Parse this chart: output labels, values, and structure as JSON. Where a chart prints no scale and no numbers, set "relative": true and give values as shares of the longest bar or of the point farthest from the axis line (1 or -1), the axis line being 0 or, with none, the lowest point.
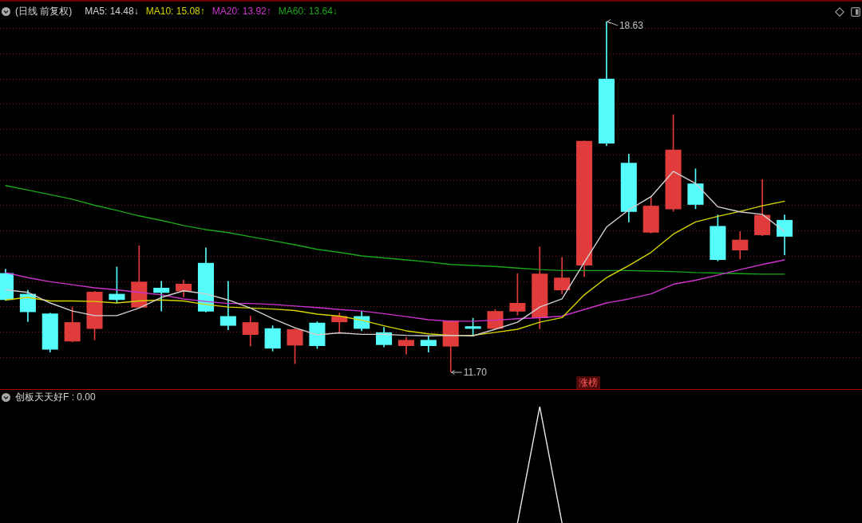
{
  "chart_data": [
    {
      "type": "candlestick",
      "title": "(日线 前复权)",
      "categories": [
        null,
        null,
        null,
        null,
        null,
        null,
        null,
        null,
        null,
        null,
        null,
        null,
        null,
        null,
        null,
        null,
        null,
        null,
        null,
        null,
        null,
        null,
        null,
        null,
        null,
        null,
        null,
        null,
        null,
        null,
        null,
        null,
        null,
        null,
        null,
        null
      ],
      "ohlc": [
        [
          13.66,
          13.74,
          13.12,
          13.13
        ],
        [
          13.25,
          13.32,
          12.7,
          12.89
        ],
        [
          12.86,
          12.87,
          12.1,
          12.15
        ],
        [
          12.31,
          12.99,
          12.3,
          12.69
        ],
        [
          12.56,
          13.3,
          12.34,
          13.29
        ],
        [
          13.25,
          13.78,
          13.07,
          13.13
        ],
        [
          12.98,
          14.2,
          12.97,
          13.49
        ],
        [
          13.37,
          13.5,
          12.91,
          13.27
        ],
        [
          13.3,
          13.52,
          13.19,
          13.45
        ],
        [
          13.86,
          14.16,
          12.89,
          12.9
        ],
        [
          12.81,
          13.5,
          12.54,
          12.62
        ],
        [
          12.44,
          12.81,
          12.22,
          12.69
        ],
        [
          12.57,
          12.62,
          12.12,
          12.17
        ],
        [
          12.23,
          12.57,
          11.87,
          12.55
        ],
        [
          12.68,
          12.7,
          12.17,
          12.22
        ],
        [
          12.69,
          12.87,
          12.47,
          12.81
        ],
        [
          12.81,
          12.91,
          12.52,
          12.56
        ],
        [
          12.49,
          12.59,
          12.2,
          12.24
        ],
        [
          12.22,
          12.39,
          12.06,
          12.34
        ],
        [
          12.34,
          12.41,
          12.1,
          12.22
        ],
        [
          12.21,
          12.72,
          11.7,
          12.72
        ],
        [
          12.61,
          12.77,
          12.42,
          12.56
        ],
        [
          12.56,
          12.94,
          12.55,
          12.91
        ],
        [
          12.9,
          13.65,
          12.83,
          13.07
        ],
        [
          12.77,
          14.18,
          12.56,
          13.65
        ],
        [
          13.32,
          13.97,
          13.25,
          13.57
        ],
        [
          13.81,
          16.27,
          13.59,
          16.27
        ],
        [
          17.5,
          18.63,
          16.18,
          16.22
        ],
        [
          15.84,
          16.01,
          14.67,
          14.87
        ],
        [
          14.46,
          15.17,
          14.45,
          14.99
        ],
        [
          14.92,
          16.79,
          14.88,
          16.1
        ],
        [
          15.43,
          15.72,
          14.93,
          15.01
        ],
        [
          14.59,
          14.81,
          13.9,
          13.92
        ],
        [
          14.11,
          14.48,
          13.94,
          14.32
        ],
        [
          14.41,
          15.51,
          14.4,
          14.81
        ],
        [
          14.71,
          14.81,
          14.02,
          14.38
        ]
      ],
      "colors": [
        "#54fcfc",
        "#54fcfc",
        "#54fcfc",
        "#e03c3c",
        "#e03c3c",
        "#54fcfc",
        "#e03c3c",
        "#54fcfc",
        "#e03c3c",
        "#54fcfc",
        "#54fcfc",
        "#e03c3c",
        "#54fcfc",
        "#e03c3c",
        "#54fcfc",
        "#e03c3c",
        "#54fcfc",
        "#54fcfc",
        "#e03c3c",
        "#54fcfc",
        "#e03c3c",
        "#54fcfc",
        "#e03c3c",
        "#e03c3c",
        "#e03c3c",
        "#e03c3c",
        "#e03c3c",
        "#54fcfc",
        "#54fcfc",
        "#e03c3c",
        "#e03c3c",
        "#54fcfc",
        "#54fcfc",
        "#e03c3c",
        "#e03c3c",
        "#54fcfc"
      ],
      "series": [
        {
          "name": "MA5: 14.48↓",
          "type": "line",
          "color": "#d0d0d0",
          "values": [
            13.33,
            13.28,
            13.07,
            12.91,
            12.82,
            12.82,
            12.97,
            13.18,
            13.31,
            13.25,
            13.13,
            12.97,
            12.76,
            12.58,
            12.44,
            12.48,
            12.45,
            12.45,
            12.43,
            12.42,
            12.43,
            12.42,
            12.55,
            12.69,
            12.99,
            13.15,
            13.87,
            14.57,
            14.91,
            15.17,
            15.67,
            15.43,
            14.97,
            14.87,
            14.82,
            14.48
          ]
        },
        {
          "name": "MA10: 15.08↑",
          "type": "line",
          "color": "#d4d400",
          "values": [
            13.13,
            13.18,
            13.11,
            13.11,
            13.1,
            13.07,
            13.11,
            13.13,
            13.11,
            13.04,
            12.99,
            12.97,
            12.95,
            12.92,
            12.85,
            12.81,
            12.73,
            12.62,
            12.52,
            12.46,
            12.43,
            12.43,
            12.49,
            12.55,
            12.69,
            12.78,
            13.23,
            13.57,
            13.81,
            14.07,
            14.43,
            14.67,
            14.78,
            14.88,
            14.99,
            15.08
          ]
        },
        {
          "name": "MA20: 13.92↑",
          "type": "line",
          "color": "#cc33cc",
          "values": [
            13.67,
            13.57,
            13.49,
            13.43,
            13.37,
            13.33,
            13.28,
            13.23,
            13.15,
            13.1,
            13.06,
            13.06,
            13.04,
            13.01,
            12.98,
            12.94,
            12.91,
            12.86,
            12.8,
            12.74,
            12.71,
            12.71,
            12.73,
            12.76,
            12.78,
            12.81,
            12.94,
            13.07,
            13.15,
            13.25,
            13.44,
            13.52,
            13.62,
            13.73,
            13.83,
            13.92
          ]
        },
        {
          "name": "MA60: 13.64↓",
          "type": "line",
          "color": "#1aa51a",
          "values": [
            15.39,
            15.3,
            15.21,
            15.12,
            15.0,
            14.9,
            14.79,
            14.7,
            14.6,
            14.52,
            14.46,
            14.38,
            14.3,
            14.22,
            14.13,
            14.07,
            14.0,
            13.96,
            13.92,
            13.88,
            13.83,
            13.81,
            13.79,
            13.76,
            13.73,
            13.71,
            13.71,
            13.71,
            13.71,
            13.7,
            13.69,
            13.67,
            13.66,
            13.65,
            13.64,
            13.64
          ]
        }
      ],
      "yticks": [
        {
          "value": 12,
          "label": null
        },
        {
          "value": 12.5,
          "label": null
        },
        {
          "value": 13,
          "label": null
        },
        {
          "value": 13.5,
          "label": null
        },
        {
          "value": 14,
          "label": null
        },
        {
          "value": 14.5,
          "label": null
        },
        {
          "value": 15,
          "label": null
        },
        {
          "value": 15.5,
          "label": null
        },
        {
          "value": 16,
          "label": null
        },
        {
          "value": 16.5,
          "label": null
        },
        {
          "value": 17,
          "label": null
        },
        {
          "value": 17.5,
          "label": null
        },
        {
          "value": 18,
          "label": null
        },
        {
          "value": 18.5,
          "label": null
        }
      ],
      "grid": "y",
      "legend": "top left",
      "marker": "none",
      "annotations": [
        "18.63",
        "11.70",
        "涨榜"
      ]
    },
    {
      "type": "line",
      "title": "创板天天好F : 0.00",
      "categories": [
        null,
        null,
        null,
        null,
        null,
        null,
        null,
        null,
        null,
        null,
        null,
        null,
        null,
        null,
        null,
        null,
        null,
        null,
        null,
        null,
        null,
        null,
        null,
        null,
        null,
        null,
        null,
        null,
        null,
        null,
        null,
        null,
        null,
        null,
        null,
        null
      ],
      "values": [
        null,
        null,
        null,
        null,
        null,
        null,
        null,
        null,
        null,
        null,
        null,
        null,
        null,
        null,
        null,
        null,
        null,
        null,
        null,
        null,
        null,
        null,
        null,
        0,
        1,
        0,
        null,
        null,
        null,
        null,
        null,
        null,
        null,
        null,
        null,
        null
      ],
      "color": "#e6e6e6",
      "relative": true,
      "marker": "none"
    }
  ]
}
